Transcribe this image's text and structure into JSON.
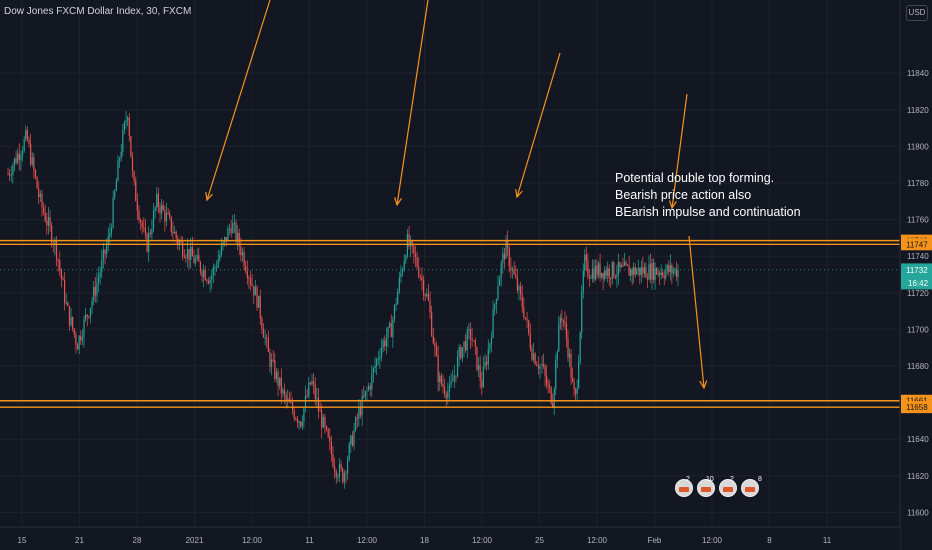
{
  "header": {
    "symbol_title": "Dow Jones FXCM Dollar Index, 30, FXCM",
    "currency_button": "USD"
  },
  "annotation": {
    "lines": [
      "Potential double top forming.",
      "Bearish price action also",
      "BEarish impulse and continuation"
    ]
  },
  "events": [
    {
      "count": "2"
    },
    {
      "count": "10"
    },
    {
      "count": "2"
    },
    {
      "count": "8"
    }
  ],
  "colors": {
    "background": "#131722",
    "grid": "#1e222d",
    "bull": "#26a69a",
    "bear": "#ef5350",
    "level": "#f7931a",
    "text": "#b2b5be"
  },
  "chart_data": {
    "type": "candlestick",
    "ylim": [
      11592,
      11880
    ],
    "y_ticks": [
      11600,
      11620,
      11640,
      11660,
      11680,
      11700,
      11720,
      11740,
      11760,
      11780,
      11800,
      11820,
      11840
    ],
    "x_ticks": [
      "15",
      "21",
      "28",
      "2021",
      "12:00",
      "11",
      "12:00",
      "18",
      "12:00",
      "25",
      "12:00",
      "Feb",
      "12:00",
      "8",
      "11"
    ],
    "levels": [
      {
        "label": "11748",
        "value": 11748.5
      },
      {
        "label": "11747",
        "value": 11746.5
      },
      {
        "label": "11661",
        "value": 11661
      },
      {
        "label": "11658",
        "value": 11657.5
      }
    ],
    "last_price": {
      "label": "11732",
      "value": 11732.5
    },
    "countdown": "16:42",
    "price_waypoints": [
      [
        0,
        11785
      ],
      [
        0.035,
        11805
      ],
      [
        0.06,
        11770
      ],
      [
        0.09,
        11745
      ],
      [
        0.11,
        11712
      ],
      [
        0.13,
        11692
      ],
      [
        0.16,
        11718
      ],
      [
        0.19,
        11750
      ],
      [
        0.21,
        11795
      ],
      [
        0.225,
        11820
      ],
      [
        0.235,
        11780
      ],
      [
        0.26,
        11745
      ],
      [
        0.28,
        11770
      ],
      [
        0.3,
        11760
      ],
      [
        0.32,
        11748
      ],
      [
        0.35,
        11738
      ],
      [
        0.38,
        11728
      ],
      [
        0.4,
        11742
      ],
      [
        0.42,
        11758
      ],
      [
        0.44,
        11742
      ],
      [
        0.47,
        11715
      ],
      [
        0.49,
        11685
      ],
      [
        0.52,
        11662
      ],
      [
        0.55,
        11650
      ],
      [
        0.57,
        11672
      ],
      [
        0.585,
        11655
      ],
      [
        0.6,
        11640
      ],
      [
        0.615,
        11625
      ],
      [
        0.63,
        11620
      ],
      [
        0.645,
        11638
      ],
      [
        0.66,
        11655
      ],
      [
        0.68,
        11670
      ],
      [
        0.7,
        11690
      ],
      [
        0.72,
        11700
      ],
      [
        0.735,
        11725
      ],
      [
        0.75,
        11748
      ],
      [
        0.77,
        11735
      ],
      [
        0.79,
        11715
      ],
      [
        0.81,
        11672
      ],
      [
        0.83,
        11665
      ],
      [
        0.85,
        11688
      ],
      [
        0.87,
        11698
      ],
      [
        0.89,
        11670
      ],
      [
        0.905,
        11692
      ],
      [
        0.92,
        11725
      ],
      [
        0.935,
        11745
      ],
      [
        0.95,
        11730
      ],
      [
        0.97,
        11710
      ],
      [
        0.985,
        11688
      ],
      [
        1.0,
        11680
      ]
    ],
    "price_waypoints_2": [
      [
        0,
        11680
      ],
      [
        0.04,
        11668
      ],
      [
        0.08,
        11662
      ],
      [
        0.11,
        11690
      ],
      [
        0.14,
        11710
      ],
      [
        0.17,
        11700
      ],
      [
        0.2,
        11685
      ],
      [
        0.23,
        11665
      ],
      [
        0.25,
        11662
      ],
      [
        0.28,
        11700
      ],
      [
        0.31,
        11738
      ],
      [
        0.33,
        11732
      ]
    ],
    "arrows": [
      {
        "from": [
          270,
          0
        ],
        "to": [
          207,
          200
        ]
      },
      {
        "from": [
          428,
          0
        ],
        "to": [
          397,
          205
        ]
      },
      {
        "from": [
          560,
          53
        ],
        "to": [
          517,
          197
        ]
      },
      {
        "from": [
          687,
          94
        ],
        "to": [
          672,
          208
        ]
      },
      {
        "from": [
          689,
          236
        ],
        "to": [
          704,
          388
        ]
      }
    ]
  }
}
